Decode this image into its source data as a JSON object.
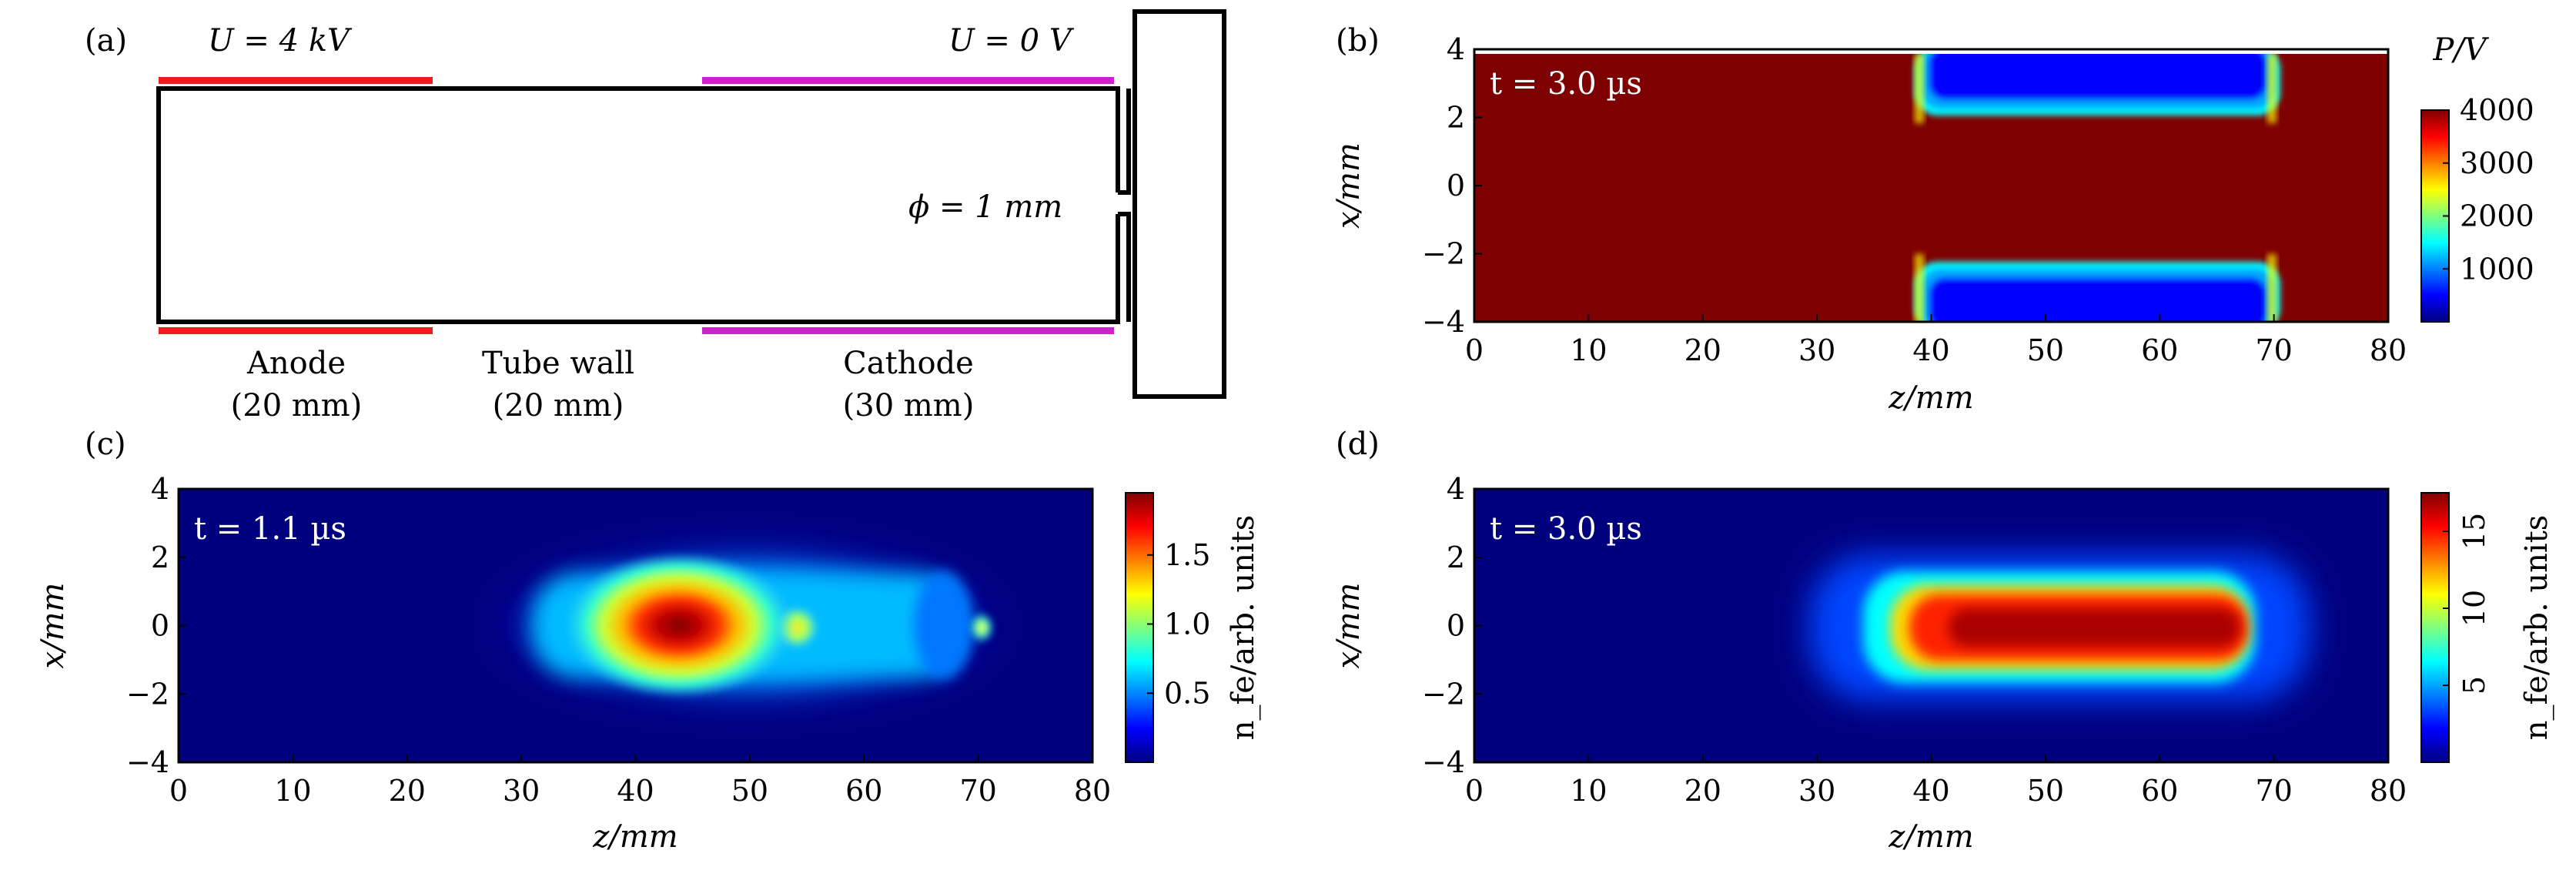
{
  "panels": {
    "a": "(a)",
    "b": "(b)",
    "c": "(c)",
    "d": "(d)"
  },
  "schematic": {
    "anode_voltage": "U = 4 kV",
    "cathode_voltage": "U = 0 V",
    "aperture": "ϕ =  1 mm",
    "anode_label": "Anode",
    "anode_length": "(20 mm)",
    "wall_label": "Tube wall",
    "wall_length": "(20 mm)",
    "cathode_label": "Cathode",
    "cathode_length": "(30 mm)",
    "anode_color": "#ee1c1c",
    "cathode_color": "#cc22cc"
  },
  "chart_data": [
    {
      "id": "b",
      "type": "heatmap",
      "quantity": "potential",
      "time_label": "t = 3.0 µs",
      "xlabel": "z/mm",
      "ylabel": "x/mm",
      "xlim": [
        0,
        80
      ],
      "ylim": [
        -4,
        4
      ],
      "xticks": [
        0,
        10,
        20,
        30,
        40,
        50,
        60,
        70,
        80
      ],
      "yticks": [
        -4,
        -2,
        0,
        2,
        4
      ],
      "colorbar": {
        "title": "P/V",
        "min": 0,
        "max": 4000,
        "ticks": [
          "1000",
          "2000",
          "3000",
          "4000"
        ]
      },
      "features": [
        {
          "description": "low-potential region near walls",
          "z_range": [
            39,
            70
          ],
          "x_bands": [
            [
              2.4,
              3.9
            ],
            [
              -3.9,
              -2.4
            ]
          ],
          "value": 0
        },
        {
          "description": "bulk potential",
          "value": 4000
        }
      ]
    },
    {
      "id": "c",
      "type": "heatmap",
      "quantity": "fast electron density",
      "time_label": "t = 1.1 µs",
      "xlabel": "z/mm",
      "ylabel": "x/mm",
      "xlim": [
        0,
        80
      ],
      "ylim": [
        -4,
        4
      ],
      "xticks": [
        0,
        10,
        20,
        30,
        40,
        50,
        60,
        70,
        80
      ],
      "yticks": [
        -4,
        -2,
        0,
        2,
        4
      ],
      "colorbar": {
        "title": "n_fe/arb. units",
        "min": 0,
        "max": 1.95,
        "ticks": [
          "0.5",
          "1.0",
          "1.5"
        ]
      },
      "features": [
        {
          "description": "main peak",
          "z": 42.5,
          "x": 0,
          "value": 1.95
        },
        {
          "description": "secondary peak",
          "z": 53.5,
          "x": 0,
          "value": 1.0
        },
        {
          "description": "aperture spot",
          "z": 70,
          "x": 0,
          "value": 1.1
        }
      ]
    },
    {
      "id": "d",
      "type": "heatmap",
      "quantity": "fast electron density",
      "time_label": "t = 3.0 µs",
      "xlabel": "z/mm",
      "ylabel": "x/mm",
      "xlim": [
        0,
        80
      ],
      "ylim": [
        -4,
        4
      ],
      "xticks": [
        0,
        10,
        20,
        30,
        40,
        50,
        60,
        70,
        80
      ],
      "yticks": [
        -4,
        -2,
        0,
        2,
        4
      ],
      "colorbar": {
        "title": "n_fe/arb. units",
        "min": 0,
        "max": 17.5,
        "ticks": [
          "5",
          "10",
          "15"
        ]
      },
      "features": [
        {
          "description": "elongated plasma column",
          "z_range": [
            38,
            68
          ],
          "x_range": [
            -1.7,
            1.7
          ],
          "value": 17.5
        }
      ]
    }
  ]
}
